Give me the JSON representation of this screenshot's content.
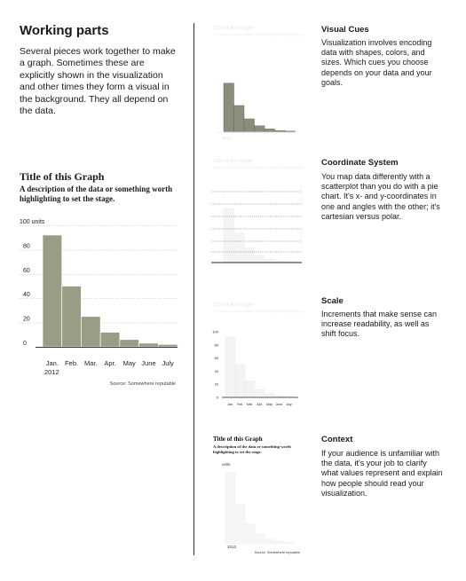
{
  "heading": "Working parts",
  "intro": "Several pieces work together to make a graph. Sometimes these are explicitly shown in the visualization and other times they form a visual in the background. They all depend on the data.",
  "graph": {
    "title": "Title of this Graph",
    "description": "A description of the data or something worth highlighting to set the stage.",
    "units_label": "100 units",
    "units_short": "units",
    "year": "2012",
    "source": "Source: Somewhere reputable",
    "bar_color": "#9a9c85"
  },
  "chart_data": {
    "type": "bar",
    "title": "Title of this Graph",
    "categories": [
      "Jan.",
      "Feb.",
      "Mar.",
      "Apr.",
      "May",
      "June",
      "July"
    ],
    "values": [
      92,
      50,
      25,
      12,
      6,
      3,
      2
    ],
    "ylim": [
      0,
      100
    ],
    "yticks": [
      0,
      20,
      40,
      60,
      80,
      100
    ],
    "ytick_labels": [
      "0",
      "20",
      "40",
      "60",
      "80",
      "100 units"
    ]
  },
  "sections": [
    {
      "title": "Visual Cues",
      "body": "Visualization involves encoding data with shapes, colors, and sizes. Which cues you choose depends on your data and your goals."
    },
    {
      "title": "Coordinate System",
      "body": "You map data differently with a scatterplot than you do with a pie chart. It's x- and y-coordinates in one and angles with the other; it's cartesian versus polar."
    },
    {
      "title": "Scale",
      "body": "Increments that make sense can increase readability, as well as shift focus."
    },
    {
      "title": "Context",
      "body": "If your audience is unfamiliar with the data, it's your job to clarify what values represent and explain how people should read your visualization."
    }
  ]
}
